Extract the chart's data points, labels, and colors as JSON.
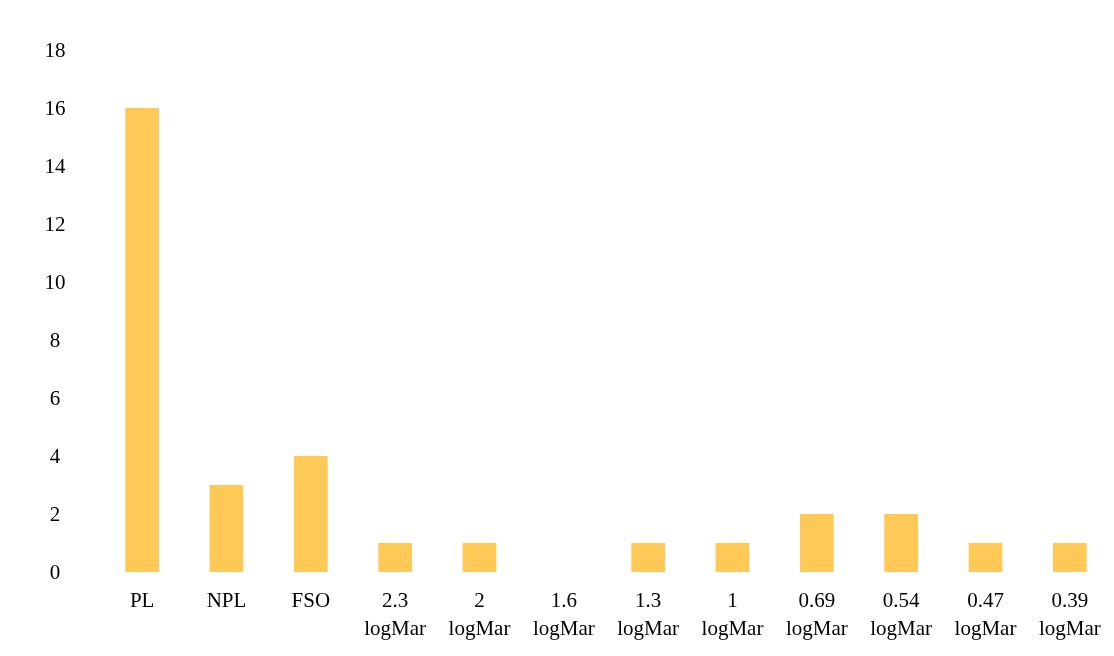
{
  "chart_data": {
    "type": "bar",
    "categories": [
      "PL",
      "NPL",
      "FSO",
      "2.3 logMar",
      "2 logMar",
      "1.6 logMar",
      "1.3 logMar",
      "1 logMar",
      "0.69 logMar",
      "0.54 logMar",
      "0.47 logMar",
      "0.39 logMar"
    ],
    "values": [
      16,
      3,
      4,
      1,
      1,
      0,
      1,
      1,
      2,
      2,
      1,
      1
    ],
    "color": "#ffc957",
    "ylim": [
      0,
      18
    ],
    "yticks": [
      0,
      2,
      4,
      6,
      8,
      10,
      12,
      14,
      16,
      18
    ],
    "grid": false
  }
}
